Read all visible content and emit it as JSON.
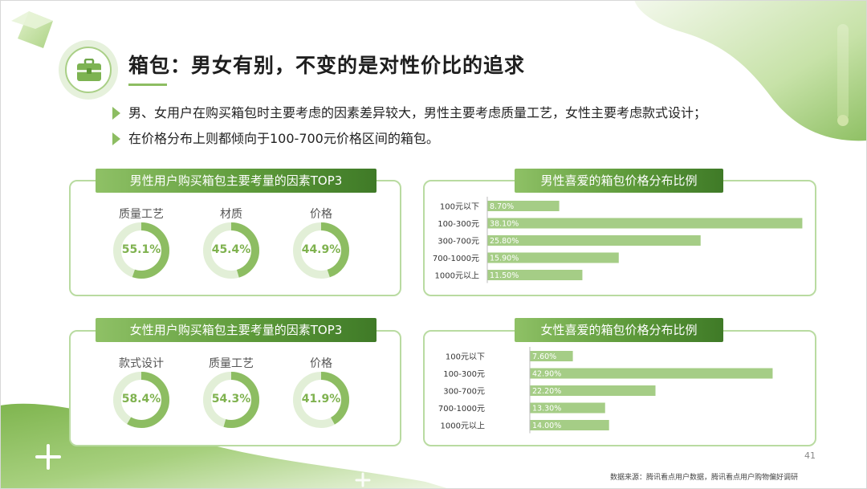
{
  "title": "箱包：男女有别，不变的是对性价比的追求",
  "bullets": [
    "男、女用户在购买箱包时主要考虑的因素差异较大，男性主要考虑质量工艺，女性主要考虑款式设计；",
    "在价格分布上则都倾向于100-700元价格区间的箱包。"
  ],
  "icons": {
    "title_icon": "briefcase-icon",
    "decor_plus": "plus-icon",
    "decor_cube": "cube-icon"
  },
  "colors": {
    "accent": "#8dbd62",
    "donut_fill": "#8dbd62",
    "donut_track": "#e2efd7",
    "bar": "#a5cd86",
    "header_dark": "#3f7a27"
  },
  "male_factors": {
    "header": "男性用户购买箱包主要考量的因素TOP3",
    "items": [
      {
        "label": "质量工艺",
        "value_text": "55.1%",
        "value": 55.1
      },
      {
        "label": "材质",
        "value_text": "45.4%",
        "value": 45.4
      },
      {
        "label": "价格",
        "value_text": "44.9%",
        "value": 44.9
      }
    ]
  },
  "female_factors": {
    "header": "女性用户购买箱包主要考量的因素TOP3",
    "items": [
      {
        "label": "款式设计",
        "value_text": "58.4%",
        "value": 58.4
      },
      {
        "label": "质量工艺",
        "value_text": "54.3%",
        "value": 54.3
      },
      {
        "label": "价格",
        "value_text": "41.9%",
        "value": 41.9
      }
    ]
  },
  "male_price": {
    "header": "男性喜爱的箱包价格分布比例"
  },
  "female_price": {
    "header": "女性喜爱的箱包价格分布比例"
  },
  "chart_data": [
    {
      "type": "pie",
      "title": "男性用户购买箱包主要考量的因素TOP3",
      "categories": [
        "质量工艺",
        "材质",
        "价格"
      ],
      "values": [
        55.1,
        45.4,
        44.9
      ],
      "unit": "%"
    },
    {
      "type": "bar",
      "orientation": "horizontal",
      "title": "男性喜爱的箱包价格分布比例",
      "categories": [
        "100元以下",
        "100-300元",
        "300-700元",
        "700-1000元",
        "1000元以上"
      ],
      "values": [
        8.7,
        38.1,
        25.8,
        15.9,
        11.5
      ],
      "value_labels": [
        "8.70%",
        "38.10%",
        "25.80%",
        "15.90%",
        "11.50%"
      ],
      "xlim": [
        0,
        45
      ],
      "grid": false
    },
    {
      "type": "pie",
      "title": "女性用户购买箱包主要考量的因素TOP3",
      "categories": [
        "款式设计",
        "质量工艺",
        "价格"
      ],
      "values": [
        58.4,
        54.3,
        41.9
      ],
      "unit": "%"
    },
    {
      "type": "bar",
      "orientation": "horizontal",
      "title": "女性喜爱的箱包价格分布比例",
      "categories": [
        "100元以下",
        "100-300元",
        "300-700元",
        "700-1000元",
        "1000元以上"
      ],
      "values": [
        7.6,
        42.9,
        22.2,
        13.3,
        14.0
      ],
      "value_labels": [
        "7.60%",
        "42.90%",
        "22.20%",
        "13.30%",
        "14.00%"
      ],
      "xlim": [
        0,
        45
      ],
      "grid": false
    }
  ],
  "page_number": "41",
  "source": "数据来源：腾讯看点用户数据，腾讯看点用户购物偏好调研"
}
